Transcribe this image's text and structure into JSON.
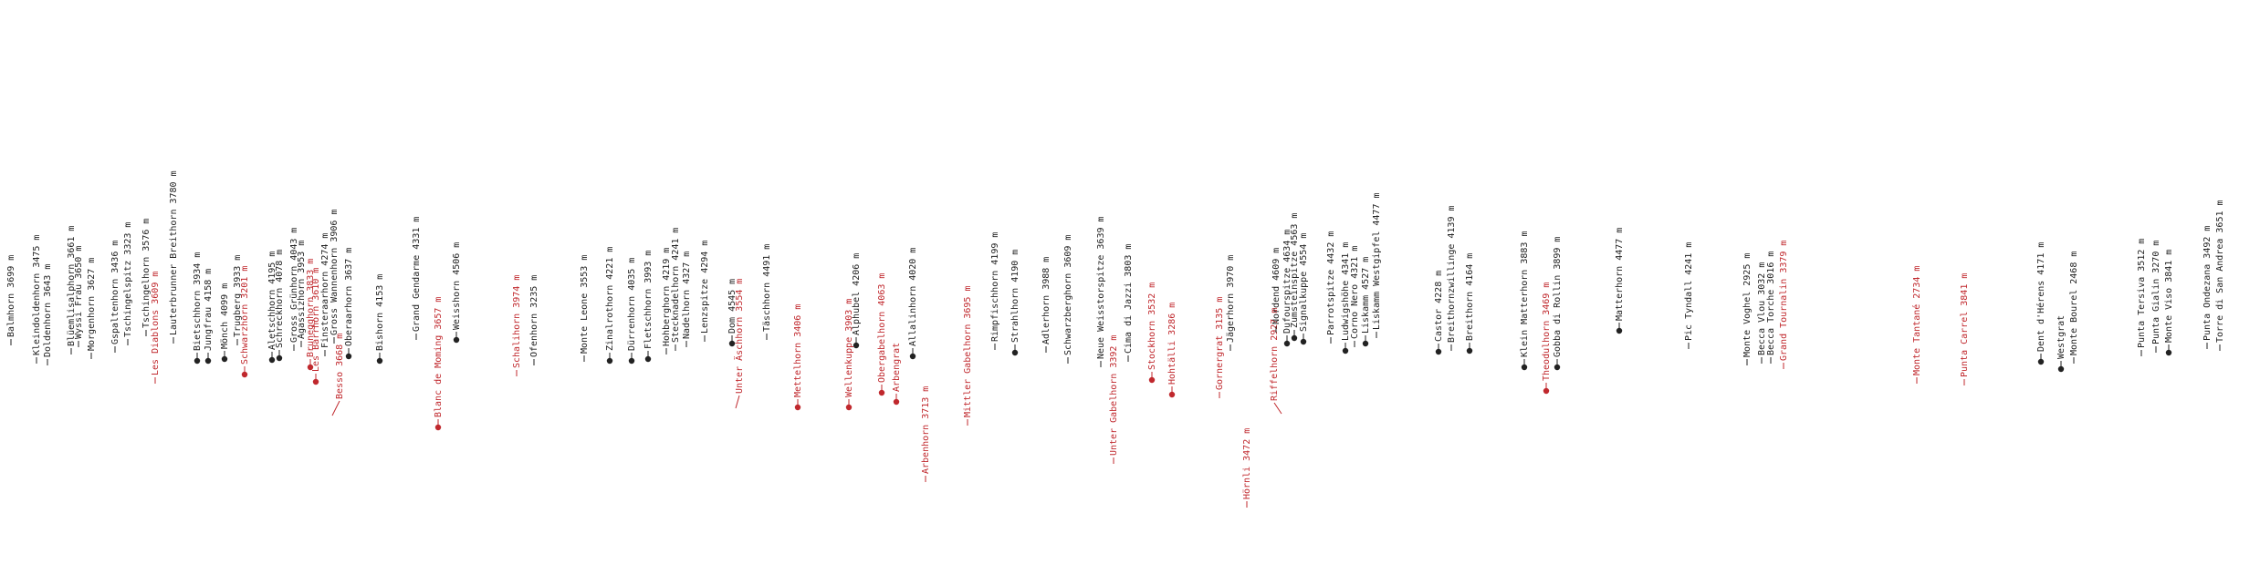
{
  "colors": {
    "normal": "#222222",
    "highlight": "#c0282d"
  },
  "peaks": [
    {
      "label": "Balmhorn 3699 m",
      "hl": false,
      "dot": false
    },
    {
      "label": "Kleindoldenhorn 3475 m",
      "hl": false,
      "dot": false
    },
    {
      "label": "Doldenhorn 3643 m",
      "hl": false,
      "dot": false
    },
    {
      "label": "Blüemlisalphorn 3661 m",
      "hl": false,
      "dot": false
    },
    {
      "label": "Wyssi Frau 3650 m",
      "hl": false,
      "dot": false
    },
    {
      "label": "Morgenhorn 3627 m",
      "hl": false,
      "dot": false
    },
    {
      "label": "Gspaltenhorn 3436 m",
      "hl": false,
      "dot": false
    },
    {
      "label": "Tschingelspitz 3323 m",
      "hl": false,
      "dot": false
    },
    {
      "label": "Tschingelhorn 3576 m",
      "hl": false,
      "dot": false
    },
    {
      "label": "Les Diablons 3609 m",
      "hl": true,
      "dot": false
    },
    {
      "label": "Lauterbrunner Breithorn 3780 m",
      "hl": false,
      "dot": false
    },
    {
      "label": "Bietschhorn 3934 m",
      "hl": false,
      "dot": true
    },
    {
      "label": "Jungfrau 4158 m",
      "hl": false,
      "dot": true
    },
    {
      "label": "Mönch 4099 m",
      "hl": false,
      "dot": true
    },
    {
      "label": "Trugberg 3933 m",
      "hl": false,
      "dot": false
    },
    {
      "label": "Schwarzhorn 3201 m",
      "hl": true,
      "dot": true
    },
    {
      "label": "Aletschhorn 4195 m",
      "hl": false,
      "dot": true
    },
    {
      "label": "Schreckhorn 4078 m",
      "hl": false,
      "dot": true
    },
    {
      "label": "Gross Grünhorn 4043 m",
      "hl": false,
      "dot": false
    },
    {
      "label": "Agassizhorn 3953 m",
      "hl": false,
      "dot": false
    },
    {
      "label": "Brunegghorn 3833 m",
      "hl": true,
      "dot": true
    },
    {
      "label": "Les Barrhorn 3610 m",
      "hl": true,
      "dot": true
    },
    {
      "label": "Finsteraarhorn 4274 m",
      "hl": false,
      "dot": false
    },
    {
      "label": "Gross Wannenhorn 3906 m",
      "hl": false,
      "dot": false
    },
    {
      "label": "Besso 3668 m",
      "hl": true,
      "dot": false
    },
    {
      "label": "Oberaarhorn 3637 m",
      "hl": false,
      "dot": true
    },
    {
      "label": "Bishorn 4153 m",
      "hl": false,
      "dot": true
    },
    {
      "label": "Grand Gendarme 4331 m",
      "hl": false,
      "dot": false
    },
    {
      "label": "Blanc de Moming 3657 m",
      "hl": true,
      "dot": true
    },
    {
      "label": "Weisshorn 4506 m",
      "hl": false,
      "dot": true
    },
    {
      "label": "Schalihorn 3974 m",
      "hl": true,
      "dot": false
    },
    {
      "label": "Ofenhorn 3235 m",
      "hl": false,
      "dot": false
    },
    {
      "label": "Monte Leone 3553 m",
      "hl": false,
      "dot": false
    },
    {
      "label": "Zinalrothorn 4221 m",
      "hl": false,
      "dot": true
    },
    {
      "label": "Dürrenhorn 4035 m",
      "hl": false,
      "dot": true
    },
    {
      "label": "Fletschhorn 3993 m",
      "hl": false,
      "dot": true
    },
    {
      "label": "Hohberghorn 4219 m",
      "hl": false,
      "dot": false
    },
    {
      "label": "Stecknadelhorn 4241 m",
      "hl": false,
      "dot": false
    },
    {
      "label": "Nadelhorn 4327 m",
      "hl": false,
      "dot": false
    },
    {
      "label": "Lenzspitze 4294 m",
      "hl": false,
      "dot": false
    },
    {
      "label": "Dom 4545 m",
      "hl": false,
      "dot": true
    },
    {
      "label": "Unter Äschhorn 3554 m",
      "hl": true,
      "dot": false
    },
    {
      "label": "Täschhorn 4491 m",
      "hl": false,
      "dot": false
    },
    {
      "label": "Mettelhorn 3406 m",
      "hl": true,
      "dot": true
    },
    {
      "label": "Wellenkuppe 3903 m",
      "hl": true,
      "dot": true
    },
    {
      "label": "Alphubel 4206 m",
      "hl": false,
      "dot": true
    },
    {
      "label": "Obergabelhorn 4063 m",
      "hl": true,
      "dot": true
    },
    {
      "label": "Arbengrat",
      "hl": true,
      "dot": true
    },
    {
      "label": "Allalinhorn 4020 m",
      "hl": false,
      "dot": true
    },
    {
      "label": "Arbenhorn 3713 m",
      "hl": true,
      "dot": false
    },
    {
      "label": "Mittler Gabelhorn 3695 m",
      "hl": true,
      "dot": false
    },
    {
      "label": "Rimpfischhorn 4199 m",
      "hl": false,
      "dot": false
    },
    {
      "label": "Strahlhorn 4190 m",
      "hl": false,
      "dot": true
    },
    {
      "label": "Adlerhorn 3988 m",
      "hl": false,
      "dot": false
    },
    {
      "label": "Schwarzberghorn 3609 m",
      "hl": false,
      "dot": false
    },
    {
      "label": "Neue Weisstorspitze 3639 m",
      "hl": false,
      "dot": false
    },
    {
      "label": "Unter Gabelhorn 3392 m",
      "hl": true,
      "dot": false
    },
    {
      "label": "Cima di Jazzi 3803 m",
      "hl": false,
      "dot": false
    },
    {
      "label": "Stockhorn 3532 m",
      "hl": true,
      "dot": true
    },
    {
      "label": "Hohtälli 3286 m",
      "hl": true,
      "dot": true
    },
    {
      "label": "Gornergrat 3135 m",
      "hl": true,
      "dot": false
    },
    {
      "label": "Hörnli 3472 m",
      "hl": true,
      "dot": false
    },
    {
      "label": "Jägerhorn 3970 m",
      "hl": false,
      "dot": false
    },
    {
      "label": "Riffelhorn 2927 m",
      "hl": true,
      "dot": false
    },
    {
      "label": "Nordend 4609 m",
      "hl": false,
      "dot": false
    },
    {
      "label": "Dufourspitze 4634 m",
      "hl": false,
      "dot": true
    },
    {
      "label": "Zumsteinspitze 4563 m",
      "hl": false,
      "dot": true
    },
    {
      "label": "Signalkuppe 4554 m",
      "hl": false,
      "dot": true
    },
    {
      "label": "Parrotspitze 4432 m",
      "hl": false,
      "dot": false
    },
    {
      "label": "Ludwigshöhe 4341 m",
      "hl": false,
      "dot": true
    },
    {
      "label": "Corno Nero 4321 m",
      "hl": false,
      "dot": false
    },
    {
      "label": "Liskamm 4527 m",
      "hl": false,
      "dot": true
    },
    {
      "label": "Liskamm Westgipfel 4477 m",
      "hl": false,
      "dot": false
    },
    {
      "label": "Castor 4228 m",
      "hl": false,
      "dot": true
    },
    {
      "label": "Breithornzwillinge 4139 m",
      "hl": false,
      "dot": false
    },
    {
      "label": "Breithorn 4164 m",
      "hl": false,
      "dot": true
    },
    {
      "label": "Klein Matterhorn 3883 m",
      "hl": false,
      "dot": true
    },
    {
      "label": "Theodulhorn 3469 m",
      "hl": true,
      "dot": true
    },
    {
      "label": "Gobba di Rollin 3899 m",
      "hl": false,
      "dot": true
    },
    {
      "label": "Matterhorn 4477 m",
      "hl": false,
      "dot": true
    },
    {
      "label": "Pic Tyndall 4241 m",
      "hl": false,
      "dot": false
    },
    {
      "label": "Monte Voghel 2925 m",
      "hl": false,
      "dot": false
    },
    {
      "label": "Becca Vlou 3032 m",
      "hl": false,
      "dot": false
    },
    {
      "label": "Becca Torche 3016 m",
      "hl": false,
      "dot": false
    },
    {
      "label": "Grand Tournalin 3379 m",
      "hl": true,
      "dot": false
    },
    {
      "label": "Monte Tantané 2734 m",
      "hl": true,
      "dot": false
    },
    {
      "label": "Punta Carrel 3841 m",
      "hl": true,
      "dot": false
    },
    {
      "label": "Dent d'Hérens 4171 m",
      "hl": false,
      "dot": true
    },
    {
      "label": "Westgrat",
      "hl": false,
      "dot": true
    },
    {
      "label": "Monte Bourel 2468 m",
      "hl": false,
      "dot": false
    },
    {
      "label": "Punta Tersiva 3512 m",
      "hl": false,
      "dot": false
    },
    {
      "label": "Punta Gialin 3270 m",
      "hl": false,
      "dot": false
    },
    {
      "label": "Monte Viso 3841 m",
      "hl": false,
      "dot": true
    },
    {
      "label": "Punta Ondezana 3492 m",
      "hl": false,
      "dot": false
    },
    {
      "label": "Torre di San Andrea 3651 m",
      "hl": false,
      "dot": false
    }
  ]
}
